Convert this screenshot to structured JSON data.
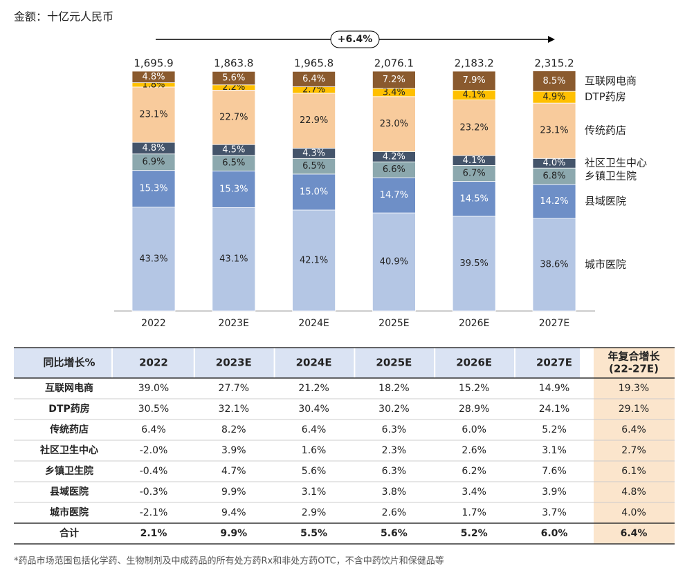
{
  "chart_data": {
    "type": "stacked_bar_100",
    "title": "金额：十亿元人民币",
    "annotation": "+6.4%",
    "categories": [
      "2022",
      "2023E",
      "2024E",
      "2025E",
      "2026E",
      "2027E"
    ],
    "totals": [
      1695.9,
      1863.8,
      1965.8,
      2076.1,
      2183.2,
      2315.2
    ],
    "total_labels": [
      "1,695.9",
      "1,863.8",
      "1,965.8",
      "2,076.1",
      "2,183.2",
      "2,315.2"
    ],
    "ylim": [
      0,
      100
    ],
    "series": [
      {
        "name": "城市医院",
        "color": "#b4c6e4",
        "values": [
          43.3,
          43.1,
          42.1,
          40.9,
          39.5,
          38.6
        ],
        "value_labels": [
          "43.3%",
          "43.1%",
          "42.1%",
          "40.9%",
          "39.5%",
          "38.6%"
        ]
      },
      {
        "name": "县域医院",
        "color": "#6e8fc7",
        "values": [
          15.3,
          15.3,
          15.0,
          14.7,
          14.5,
          14.2
        ],
        "value_labels": [
          "15.3%",
          "15.3%",
          "15.0%",
          "14.7%",
          "14.5%",
          "14.2%"
        ]
      },
      {
        "name": "乡镇卫生院",
        "color": "#8ca8ae",
        "values": [
          6.9,
          6.5,
          6.5,
          6.6,
          6.7,
          6.8
        ],
        "value_labels": [
          "6.9%",
          "6.5%",
          "6.5%",
          "6.6%",
          "6.7%",
          "6.8%"
        ]
      },
      {
        "name": "社区卫生中心",
        "color": "#44546a",
        "values": [
          4.8,
          4.5,
          4.3,
          4.2,
          4.1,
          4.0
        ],
        "value_labels": [
          "4.8%",
          "4.5%",
          "4.3%",
          "4.2%",
          "4.1%",
          "4.0%"
        ]
      },
      {
        "name": "传统药店",
        "color": "#f8cb9c",
        "values": [
          23.1,
          22.7,
          22.9,
          23.0,
          23.2,
          23.1
        ],
        "value_labels": [
          "23.1%",
          "22.7%",
          "22.9%",
          "23.0%",
          "23.2%",
          "23.1%"
        ]
      },
      {
        "name": "DTP药房",
        "color": "#ffc000",
        "values": [
          1.8,
          2.2,
          2.7,
          3.4,
          4.1,
          4.9
        ],
        "value_labels": [
          "1.8%",
          "2.2%",
          "2.7%",
          "3.4%",
          "4.1%",
          "4.9%"
        ]
      },
      {
        "name": "互联网电商",
        "color": "#8a5a2e",
        "values": [
          4.8,
          5.6,
          6.4,
          7.2,
          7.9,
          8.5
        ],
        "value_labels": [
          "4.8%",
          "5.6%",
          "6.4%",
          "7.2%",
          "7.9%",
          "8.5%"
        ]
      }
    ]
  },
  "table": {
    "header": [
      "同比增长%",
      "2022",
      "2023E",
      "2024E",
      "2025E",
      "2026E",
      "2027E"
    ],
    "cagr_header": [
      "年复合增长",
      "(22-27E)"
    ],
    "rows": [
      {
        "name": "互联网电商",
        "cells": [
          "39.0%",
          "27.7%",
          "21.2%",
          "18.2%",
          "15.2%",
          "14.9%",
          "19.3%"
        ]
      },
      {
        "name": "DTP药房",
        "cells": [
          "30.5%",
          "32.1%",
          "30.4%",
          "30.2%",
          "28.9%",
          "24.1%",
          "29.1%"
        ]
      },
      {
        "name": "传统药店",
        "cells": [
          "6.4%",
          "8.2%",
          "6.4%",
          "6.3%",
          "6.0%",
          "5.2%",
          "6.4%"
        ]
      },
      {
        "name": "社区卫生中心",
        "cells": [
          "-2.0%",
          "3.9%",
          "1.6%",
          "2.3%",
          "2.6%",
          "3.1%",
          "2.7%"
        ]
      },
      {
        "name": "乡镇卫生院",
        "cells": [
          "-0.4%",
          "4.7%",
          "5.6%",
          "6.3%",
          "6.2%",
          "7.6%",
          "6.1%"
        ]
      },
      {
        "name": "县域医院",
        "cells": [
          "-0.3%",
          "9.9%",
          "3.1%",
          "3.8%",
          "3.4%",
          "3.9%",
          "4.8%"
        ]
      },
      {
        "name": "城市医院",
        "cells": [
          "-2.1%",
          "9.4%",
          "2.9%",
          "2.6%",
          "1.7%",
          "3.7%",
          "4.0%"
        ]
      },
      {
        "name": "合计",
        "cells": [
          "2.1%",
          "9.9%",
          "5.5%",
          "5.6%",
          "5.2%",
          "6.0%",
          "6.4%"
        ]
      }
    ]
  },
  "footnote": "*药品市场范围包括化学药、生物制剂及中成药品的所有处方药Rx和非处方药OTC，不含中药饮片和保健品等"
}
